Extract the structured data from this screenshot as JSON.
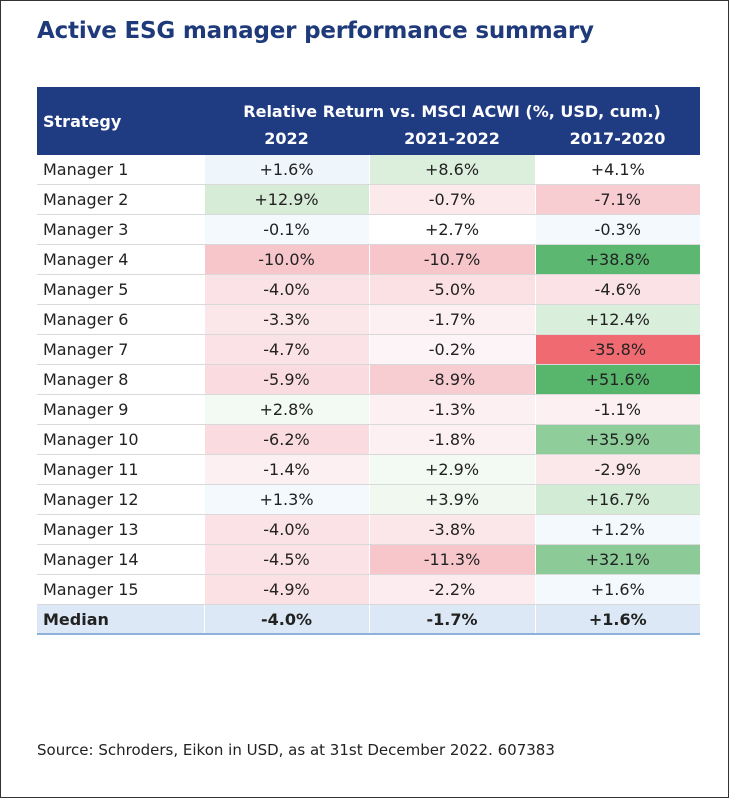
{
  "title": "Active ESG manager performance summary",
  "table": {
    "strategy_header": "Strategy",
    "group_header": "Relative Return vs. MSCI ACWI (%, USD, cum.)",
    "columns": [
      "2022",
      "2021-2022",
      "2017-2020"
    ],
    "rows": [
      {
        "name": "Manager 1",
        "values": [
          "+1.6%",
          "+8.6%",
          "+4.1%"
        ],
        "colors": [
          "#eef6fc",
          "#dcefdc",
          "#ffffff"
        ]
      },
      {
        "name": "Manager 2",
        "values": [
          "+12.9%",
          "-0.7%",
          "-7.1%"
        ],
        "colors": [
          "#d6ecd7",
          "#fbe9ec",
          "#f8cdd2"
        ]
      },
      {
        "name": "Manager 3",
        "values": [
          "-0.1%",
          "+2.7%",
          "-0.3%"
        ],
        "colors": [
          "#f3f9fd",
          "#ffffff",
          "#f3f9fd"
        ]
      },
      {
        "name": "Manager 4",
        "values": [
          "-10.0%",
          "-10.7%",
          "+38.8%"
        ],
        "colors": [
          "#f6c6cb",
          "#f6c6cb",
          "#5cb870"
        ]
      },
      {
        "name": "Manager 5",
        "values": [
          "-4.0%",
          "-5.0%",
          "-4.6%"
        ],
        "colors": [
          "#fbe2e6",
          "#fbe0e4",
          "#fbe2e6"
        ]
      },
      {
        "name": "Manager 6",
        "values": [
          "-3.3%",
          "-1.7%",
          "+12.4%"
        ],
        "colors": [
          "#fbe6e9",
          "#fcf0f2",
          "#d9eedb"
        ]
      },
      {
        "name": "Manager 7",
        "values": [
          "-4.7%",
          "-0.2%",
          "-35.8%"
        ],
        "colors": [
          "#fbe2e6",
          "#fcf4f6",
          "#f06a72"
        ]
      },
      {
        "name": "Manager 8",
        "values": [
          "-5.9%",
          "-8.9%",
          "+51.6%"
        ],
        "colors": [
          "#fadce0",
          "#f7cdd2",
          "#58b56c"
        ]
      },
      {
        "name": "Manager 9",
        "values": [
          "+2.8%",
          "-1.3%",
          "-1.1%"
        ],
        "colors": [
          "#f3f9f3",
          "#fcf0f2",
          "#fcf0f2"
        ]
      },
      {
        "name": "Manager 10",
        "values": [
          "-6.2%",
          "-1.8%",
          "+35.9%"
        ],
        "colors": [
          "#fadce0",
          "#fcf0f2",
          "#8fcd9b"
        ]
      },
      {
        "name": "Manager 11",
        "values": [
          "-1.4%",
          "+2.9%",
          "-2.9%"
        ],
        "colors": [
          "#fcf0f2",
          "#f3f9f3",
          "#fbe8eb"
        ]
      },
      {
        "name": "Manager 12",
        "values": [
          "+1.3%",
          "+3.9%",
          "+16.7%"
        ],
        "colors": [
          "#f3f9fd",
          "#f0f8f0",
          "#d2ebd4"
        ]
      },
      {
        "name": "Manager 13",
        "values": [
          "-4.0%",
          "-3.8%",
          "+1.2%"
        ],
        "colors": [
          "#fbe2e6",
          "#fbe6e9",
          "#f3f9fd"
        ]
      },
      {
        "name": "Manager 14",
        "values": [
          "-4.5%",
          "-11.3%",
          "+32.1%"
        ],
        "colors": [
          "#fbe2e6",
          "#f6c6cb",
          "#8cca98"
        ]
      },
      {
        "name": "Manager 15",
        "values": [
          "-4.9%",
          "-2.2%",
          "+1.6%"
        ],
        "colors": [
          "#fbe0e4",
          "#fcecef",
          "#f3f9fd"
        ]
      }
    ],
    "median": {
      "name": "Median",
      "values": [
        "-4.0%",
        "-1.7%",
        "+1.6%"
      ]
    }
  },
  "source": "Source: Schroders, Eikon in USD, as at 31st December 2022. 607383"
}
